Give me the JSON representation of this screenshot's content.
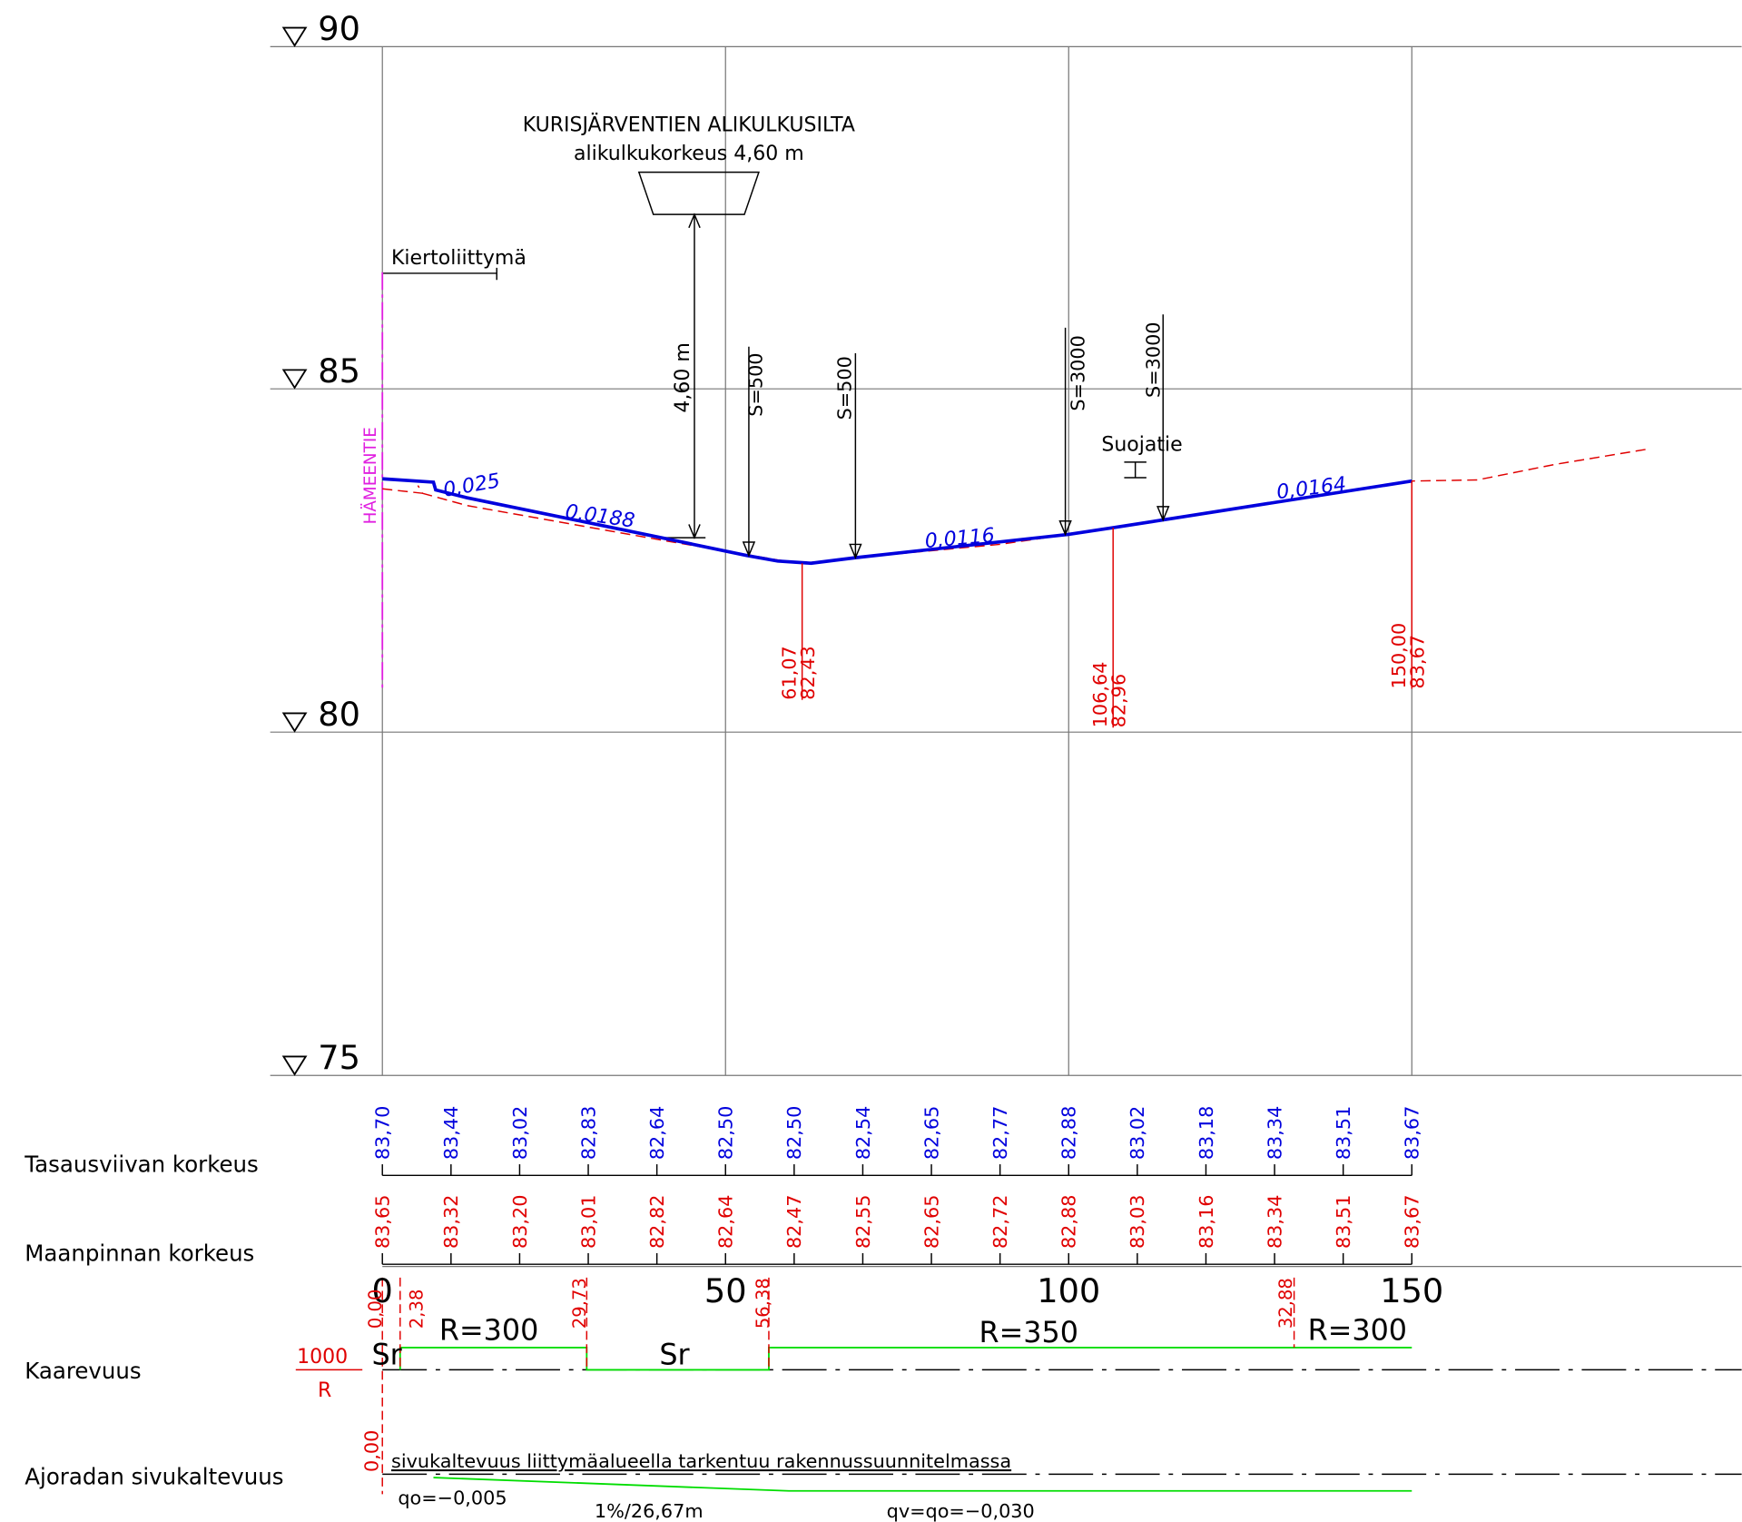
{
  "elevation_labels": [
    "90",
    "85",
    "80",
    "75"
  ],
  "station_labels": [
    "0",
    "50",
    "100",
    "150"
  ],
  "annotations": {
    "bridge_title": "KURISJÄRVENTIEN ALIKULKUSILTA",
    "bridge_subtitle": "alikulkukorkeus 4,60 m",
    "clearance": "4,60 m",
    "roundabout": "Kiertoliittymä",
    "road_name": "HÄMEENTIE",
    "crossing": "Suojatie",
    "vertical_curves": [
      "S=500",
      "S=500",
      "S=3000",
      "S=3000"
    ],
    "slopes": [
      "0,025",
      "0,0188",
      "0,0116",
      "0,0164"
    ],
    "break_points": [
      [
        "61,07",
        "82,43"
      ],
      [
        "106,64",
        "82,96"
      ],
      [
        "150,00",
        "83,67"
      ]
    ]
  },
  "rows": {
    "design_height": {
      "label": "Tasausviivan korkeus",
      "values": [
        "83,70",
        "83,44",
        "83,02",
        "82,83",
        "82,64",
        "82,50",
        "82,50",
        "82,54",
        "82,65",
        "82,77",
        "82,88",
        "83,02",
        "83,18",
        "83,34",
        "83,51",
        "83,67"
      ]
    },
    "ground_height": {
      "label": "Maanpinnan korkeus",
      "values": [
        "83,65",
        "83,32",
        "83,20",
        "83,01",
        "82,82",
        "82,64",
        "82,47",
        "82,55",
        "82,65",
        "82,72",
        "82,88",
        "83,03",
        "83,16",
        "83,34",
        "83,51",
        "83,67"
      ]
    },
    "curvature": {
      "label": "Kaarevuus",
      "scale_top": "1000",
      "scale_bottom": "R",
      "points": [
        "0,00",
        "2,38",
        "29,73",
        "56,38",
        "32,88"
      ],
      "segments": [
        "Sr",
        "R=300",
        "Sr",
        "R=350",
        "R=300"
      ]
    },
    "cross_slope": {
      "label": "Ajoradan sivukaltevuus",
      "zero": "0,00",
      "note": "sivukaltevuus liittymäalueella tarkentuu rakennussuunnitelmassa",
      "start": "qo=−0,005",
      "transition": "1%/26,67m",
      "end": "qv=qo=−0,030"
    }
  }
}
